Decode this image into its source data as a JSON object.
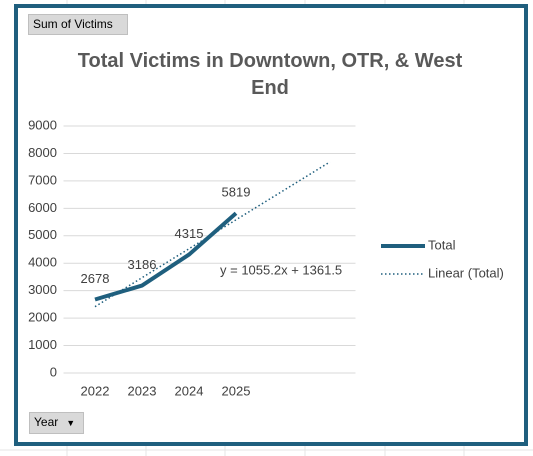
{
  "pivot": {
    "value_button": "Sum of Victims",
    "axis_button": "Year"
  },
  "chart_data": {
    "type": "line",
    "title": "Total Victims in Downtown, OTR, & West End",
    "categories": [
      "2022",
      "2023",
      "2024",
      "2025"
    ],
    "series": [
      {
        "name": "Total",
        "color": "#1f5f7e",
        "values": [
          2678,
          3186,
          4315,
          5819
        ]
      }
    ],
    "trendline": {
      "name": "Linear (Total)",
      "equation": "y = 1055.2x + 1361.5",
      "slope": 1055.2,
      "intercept": 1361.5,
      "forward": 2
    },
    "ylim": [
      0,
      9000
    ],
    "yticks": [
      0,
      1000,
      2000,
      3000,
      4000,
      5000,
      6000,
      7000,
      8000,
      9000
    ],
    "grid": true,
    "legend": "right",
    "data_labels": true
  }
}
